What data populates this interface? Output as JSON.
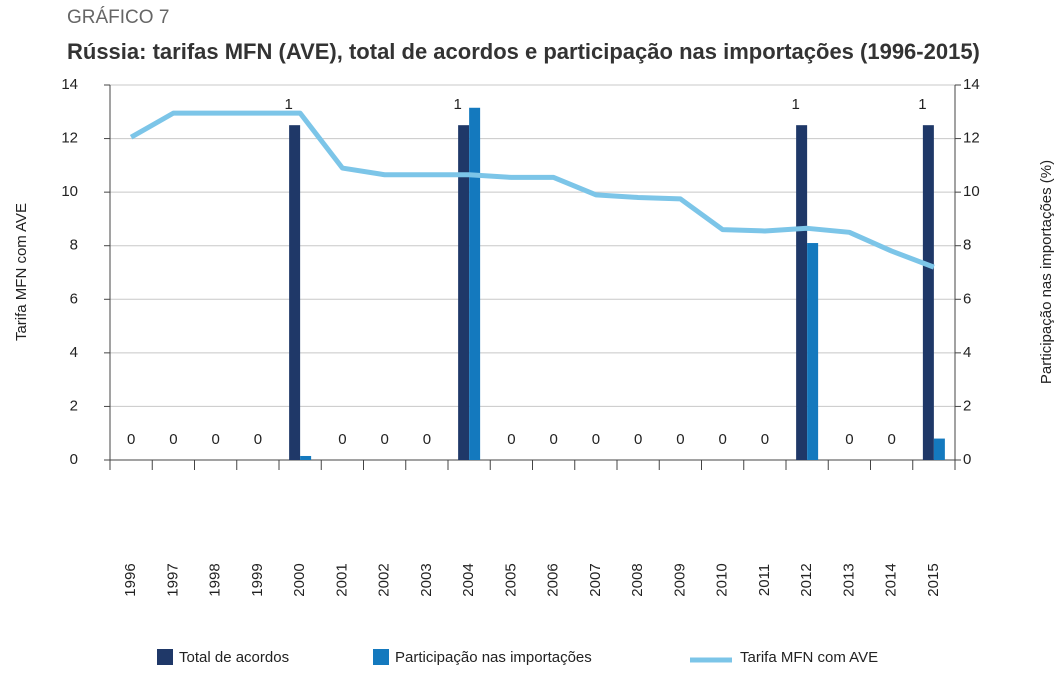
{
  "chart_data": {
    "type": "bar",
    "label": "GRÁFICO 7",
    "title": "Rússia: tarifas MFN (AVE), total de acordos e participação nas importações (1996-2015)",
    "y_label": "Tarifa MFN com AVE",
    "y2_label": "Participação nas importações (%)",
    "categories": [
      "1996",
      "1997",
      "1998",
      "1999",
      "2000",
      "2001",
      "2002",
      "2003",
      "2004",
      "2005",
      "2006",
      "2007",
      "2008",
      "2009",
      "2010",
      "2011",
      "2012",
      "2013",
      "2014",
      "2015"
    ],
    "ylim": [
      0,
      14
    ],
    "yticks": [
      0,
      2,
      4,
      6,
      8,
      10,
      12,
      14
    ],
    "y2lim": [
      0,
      14
    ],
    "y2ticks": [
      0,
      2,
      4,
      6,
      8,
      10,
      12,
      14
    ],
    "y3lim": [
      0,
      1.12
    ],
    "grid": true,
    "series": [
      {
        "name": "Total de acordos",
        "type": "bar",
        "axis": "y3",
        "color": "#1f3868",
        "data_labels": true,
        "values": [
          0,
          0,
          0,
          0,
          1,
          0,
          0,
          0,
          1,
          0,
          0,
          0,
          0,
          0,
          0,
          0,
          1,
          0,
          0,
          1
        ]
      },
      {
        "name": "Participação nas importações",
        "type": "bar",
        "axis": "y2",
        "color": "#1479be",
        "values": [
          0,
          0,
          0,
          0,
          0.15,
          0,
          0,
          0,
          13.15,
          0,
          0,
          0,
          0,
          0,
          0,
          0,
          8.1,
          0,
          0,
          0.8
        ]
      },
      {
        "name": "Tarifa MFN com AVE",
        "type": "line",
        "axis": "y",
        "color": "#7cc5e8",
        "values": [
          12.05,
          12.95,
          12.95,
          12.95,
          12.95,
          10.9,
          10.65,
          10.65,
          10.65,
          10.55,
          10.55,
          9.9,
          9.8,
          9.75,
          8.6,
          8.55,
          8.65,
          8.5,
          7.8,
          7.2
        ]
      }
    ]
  }
}
